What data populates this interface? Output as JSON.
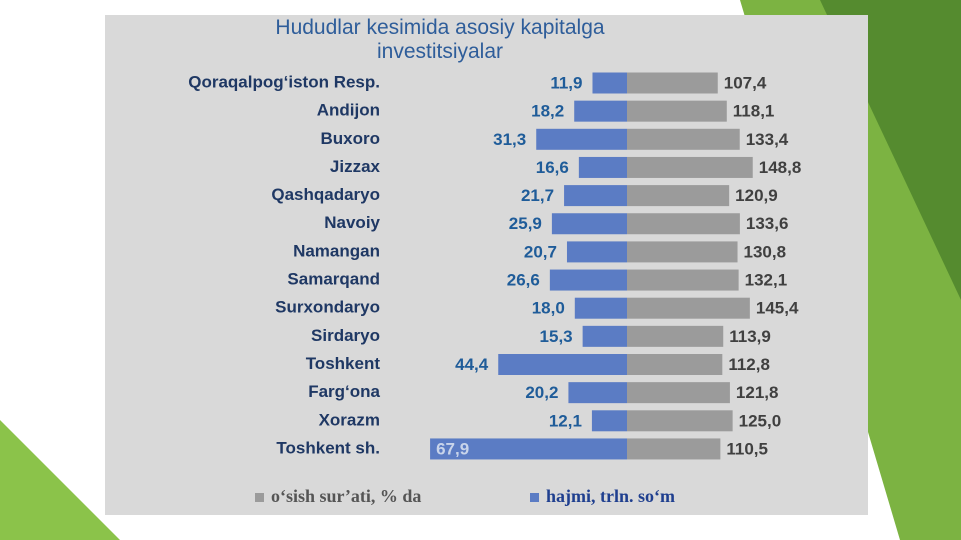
{
  "chart_data": {
    "type": "bar",
    "orientation": "diverging-horizontal",
    "title": "Hududlar kesimida asosiy kapitalga investitsiyalar",
    "categories": [
      "Qoraqalpog‘iston Resp.",
      "Andijon",
      "Buxoro",
      "Jizzax",
      "Qashqadaryo",
      "Navoiy",
      "Namangan",
      "Samarqand",
      "Surxondaryo",
      "Sirdaryo",
      "Toshkent",
      "Farg‘ona",
      "Xorazm",
      "Toshkent sh."
    ],
    "series": [
      {
        "name": "o‘sish sur’ati, % da",
        "color": "#9b9b9b",
        "side": "right",
        "values": [
          107.4,
          118.1,
          133.4,
          148.8,
          120.9,
          133.6,
          130.8,
          132.1,
          145.4,
          113.9,
          112.8,
          121.8,
          125.0,
          110.5
        ],
        "value_labels": [
          "107,4",
          "118,1",
          "133,4",
          "148,8",
          "120,9",
          "133,6",
          "130,8",
          "132,1",
          "145,4",
          "113,9",
          "112,8",
          "121,8",
          "125,0",
          "110,5"
        ]
      },
      {
        "name": "hajmi, trln. so‘m",
        "color": "#5b7cc4",
        "side": "left",
        "values": [
          11.9,
          18.2,
          31.3,
          16.6,
          21.7,
          25.9,
          20.7,
          26.6,
          18.0,
          15.3,
          44.4,
          20.2,
          12.1,
          67.9
        ],
        "value_labels": [
          "11,9",
          "18,2",
          "31,3",
          "16,6",
          "21,7",
          "25,9",
          "20,7",
          "26,6",
          "18,0",
          "15,3",
          "44,4",
          "20,2",
          "12,1",
          "67,9"
        ]
      }
    ],
    "legend": "bottom"
  }
}
